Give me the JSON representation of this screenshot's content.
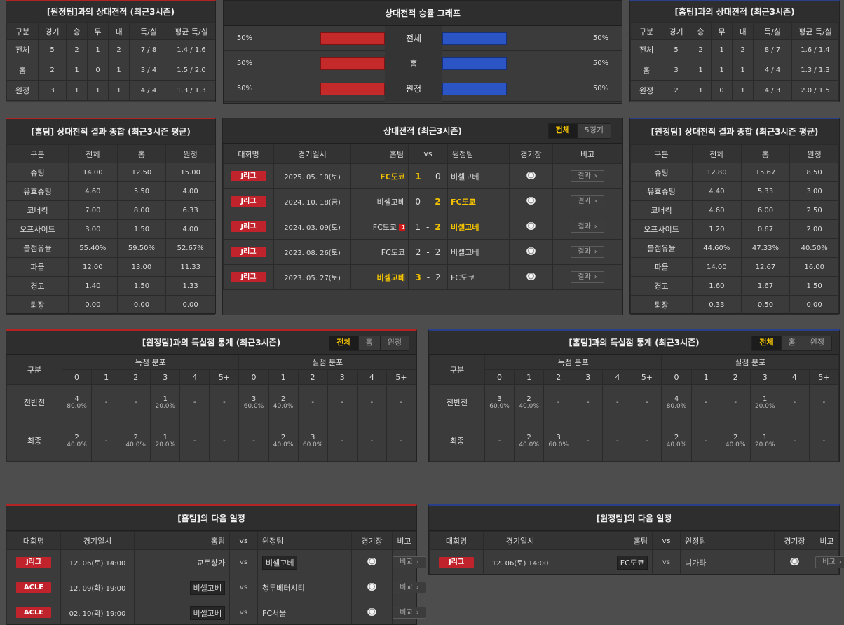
{
  "away_h2h": {
    "title": "[원정팀]과의 상대전적 (최근3시즌)",
    "headers": [
      "구분",
      "경기",
      "승",
      "무",
      "패",
      "득/실",
      "평균 득/실"
    ],
    "rows": [
      [
        "전체",
        "5",
        "2",
        "1",
        "2",
        "7 / 8",
        "1.4 / 1.6"
      ],
      [
        "홈",
        "2",
        "1",
        "0",
        "1",
        "3 / 4",
        "1.5 / 2.0"
      ],
      [
        "원정",
        "3",
        "1",
        "1",
        "1",
        "4 / 4",
        "1.3 / 1.3"
      ]
    ]
  },
  "graph": {
    "title": "상대전적 승률 그래프",
    "rows": [
      {
        "label": "전체",
        "left": "50%",
        "right": "50%",
        "left_frac": 0.5,
        "right_frac": 0.5
      },
      {
        "label": "홈",
        "left": "50%",
        "right": "50%",
        "left_frac": 0.5,
        "right_frac": 0.5
      },
      {
        "label": "원정",
        "left": "50%",
        "right": "50%",
        "left_frac": 0.5,
        "right_frac": 0.5
      }
    ]
  },
  "home_h2h": {
    "title": "[홈팀]과의 상대전적 (최근3시즌)",
    "headers": [
      "구분",
      "경기",
      "승",
      "무",
      "패",
      "득/실",
      "평균 득/실"
    ],
    "rows": [
      [
        "전체",
        "5",
        "2",
        "1",
        "2",
        "8 / 7",
        "1.6 / 1.4"
      ],
      [
        "홈",
        "3",
        "1",
        "1",
        "1",
        "4 / 4",
        "1.3 / 1.3"
      ],
      [
        "원정",
        "2",
        "1",
        "0",
        "1",
        "4 / 3",
        "2.0 / 1.5"
      ]
    ]
  },
  "home_summary": {
    "title": "[홈팀] 상대전적 결과 종합 (최근3시즌 평균)",
    "headers": [
      "구분",
      "전체",
      "홈",
      "원정"
    ],
    "rows": [
      [
        "슈팅",
        "14.00",
        "12.50",
        "15.00"
      ],
      [
        "유효슈팅",
        "4.60",
        "5.50",
        "4.00"
      ],
      [
        "코너킥",
        "7.00",
        "8.00",
        "6.33"
      ],
      [
        "오프사이드",
        "3.00",
        "1.50",
        "4.00"
      ],
      [
        "볼점유율",
        "55.40%",
        "59.50%",
        "52.67%"
      ],
      [
        "파울",
        "12.00",
        "13.00",
        "11.33"
      ],
      [
        "경고",
        "1.40",
        "1.50",
        "1.33"
      ],
      [
        "퇴장",
        "0.00",
        "0.00",
        "0.00"
      ]
    ]
  },
  "away_summary": {
    "title": "[원정팀] 상대전적 결과 종합 (최근3시즌 평균)",
    "headers": [
      "구분",
      "전체",
      "홈",
      "원정"
    ],
    "rows": [
      [
        "슈팅",
        "12.80",
        "15.67",
        "8.50"
      ],
      [
        "유효슈팅",
        "4.40",
        "5.33",
        "3.00"
      ],
      [
        "코너킥",
        "4.60",
        "6.00",
        "2.50"
      ],
      [
        "오프사이드",
        "1.20",
        "0.67",
        "2.00"
      ],
      [
        "볼점유율",
        "44.60%",
        "47.33%",
        "40.50%"
      ],
      [
        "파울",
        "14.00",
        "12.67",
        "16.00"
      ],
      [
        "경고",
        "1.60",
        "1.67",
        "1.50"
      ],
      [
        "퇴장",
        "0.33",
        "0.50",
        "0.00"
      ]
    ]
  },
  "recent": {
    "title": "상대전적 (최근3시즌)",
    "tabs": [
      "전체",
      "5경기"
    ],
    "headers": {
      "league": "대회명",
      "date": "경기일시",
      "home": "홈팀",
      "vs": "vs",
      "away": "원정팀",
      "venue": "경기장",
      "note": "비고"
    },
    "result_label": "결과",
    "matches": [
      {
        "league": "J리그",
        "date": "2025. 05. 10(토)",
        "home": "FC도쿄",
        "hs": "1",
        "dash": "-",
        "as": "0",
        "away": "비셀고베",
        "hw": true,
        "aw": false,
        "card": ""
      },
      {
        "league": "J리그",
        "date": "2024. 10. 18(금)",
        "home": "비셀고베",
        "hs": "0",
        "dash": "-",
        "as": "2",
        "away": "FC도쿄",
        "hw": false,
        "aw": true,
        "card": ""
      },
      {
        "league": "J리그",
        "date": "2024. 03. 09(토)",
        "home": "FC도쿄",
        "hs": "1",
        "dash": "-",
        "as": "2",
        "away": "비셀고베",
        "hw": false,
        "aw": true,
        "card": "1"
      },
      {
        "league": "J리그",
        "date": "2023. 08. 26(토)",
        "home": "FC도쿄",
        "hs": "2",
        "dash": "-",
        "as": "2",
        "away": "비셀고베",
        "hw": false,
        "aw": false,
        "card": ""
      },
      {
        "league": "J리그",
        "date": "2023. 05. 27(토)",
        "home": "비셀고베",
        "hs": "3",
        "dash": "-",
        "as": "2",
        "away": "FC도쿄",
        "hw": true,
        "aw": false,
        "card": ""
      }
    ]
  },
  "dist_away": {
    "title": "[원정팀]과의 득실점 통계 (최근3시즌)",
    "tabs": [
      "전체",
      "홈",
      "원정"
    ],
    "gubun": "구분",
    "scored": "득점 분포",
    "conceded": "실점 분포",
    "cols": [
      "0",
      "1",
      "2",
      "3",
      "4",
      "5+"
    ],
    "rows": [
      {
        "label": "전반전",
        "cells": [
          [
            "4",
            "80.0%"
          ],
          [
            "-",
            ""
          ],
          [
            "-",
            ""
          ],
          [
            "1",
            "20.0%"
          ],
          [
            "-",
            ""
          ],
          [
            "-",
            ""
          ],
          [
            "3",
            "60.0%"
          ],
          [
            "2",
            "40.0%"
          ],
          [
            "-",
            ""
          ],
          [
            "-",
            ""
          ],
          [
            "-",
            ""
          ],
          [
            "-",
            ""
          ]
        ]
      },
      {
        "label": "최종",
        "cells": [
          [
            "2",
            "40.0%"
          ],
          [
            "-",
            ""
          ],
          [
            "2",
            "40.0%"
          ],
          [
            "1",
            "20.0%"
          ],
          [
            "-",
            ""
          ],
          [
            "-",
            ""
          ],
          [
            "-",
            ""
          ],
          [
            "2",
            "40.0%"
          ],
          [
            "3",
            "60.0%"
          ],
          [
            "-",
            ""
          ],
          [
            "-",
            ""
          ],
          [
            "-",
            ""
          ]
        ]
      }
    ]
  },
  "dist_home": {
    "title": "[홈팀]과의 득실점 통계 (최근3시즌)",
    "tabs": [
      "전체",
      "홈",
      "원정"
    ],
    "gubun": "구분",
    "scored": "득점 분포",
    "conceded": "실점 분포",
    "cols": [
      "0",
      "1",
      "2",
      "3",
      "4",
      "5+"
    ],
    "rows": [
      {
        "label": "전반전",
        "cells": [
          [
            "3",
            "60.0%"
          ],
          [
            "2",
            "40.0%"
          ],
          [
            "-",
            ""
          ],
          [
            "-",
            ""
          ],
          [
            "-",
            ""
          ],
          [
            "-",
            ""
          ],
          [
            "4",
            "80.0%"
          ],
          [
            "-",
            ""
          ],
          [
            "-",
            ""
          ],
          [
            "1",
            "20.0%"
          ],
          [
            "-",
            ""
          ],
          [
            "-",
            ""
          ]
        ]
      },
      {
        "label": "최종",
        "cells": [
          [
            "-",
            ""
          ],
          [
            "2",
            "40.0%"
          ],
          [
            "3",
            "60.0%"
          ],
          [
            "-",
            ""
          ],
          [
            "-",
            ""
          ],
          [
            "-",
            ""
          ],
          [
            "2",
            "40.0%"
          ],
          [
            "-",
            ""
          ],
          [
            "2",
            "40.0%"
          ],
          [
            "1",
            "20.0%"
          ],
          [
            "-",
            ""
          ],
          [
            "-",
            ""
          ]
        ]
      }
    ]
  },
  "next_home": {
    "title": "[홈팀]의 다음 일정",
    "headers": {
      "league": "대회명",
      "date": "경기일시",
      "home": "홈팀",
      "vs": "vs",
      "away": "원정팀",
      "venue": "경기장",
      "note": "비고"
    },
    "btn": "비교",
    "games": [
      {
        "league": "J리그",
        "date": "12. 06(토) 14:00",
        "home": "교토상가",
        "vs": "vs",
        "away": "비셀고베",
        "hbox": false,
        "abox": true
      },
      {
        "league": "ACLE",
        "date": "12. 09(화) 19:00",
        "home": "비셀고베",
        "vs": "vs",
        "away": "청두베터시티",
        "hbox": true,
        "abox": false
      },
      {
        "league": "ACLE",
        "date": "02. 10(화) 19:00",
        "home": "비셀고베",
        "vs": "vs",
        "away": "FC서울",
        "hbox": true,
        "abox": false
      }
    ]
  },
  "next_away": {
    "title": "[원정팀]의 다음 일정",
    "headers": {
      "league": "대회명",
      "date": "경기일시",
      "home": "홈팀",
      "vs": "vs",
      "away": "원정팀",
      "venue": "경기장",
      "note": "비고"
    },
    "btn": "비교",
    "games": [
      {
        "league": "J리그",
        "date": "12. 06(토) 14:00",
        "home": "FC도쿄",
        "vs": "vs",
        "away": "니가타",
        "hbox": true,
        "abox": false
      }
    ]
  }
}
